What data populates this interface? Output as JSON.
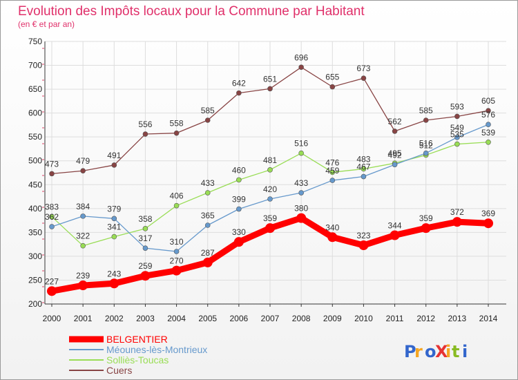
{
  "chart_data": {
    "type": "line",
    "title": "Evolution des Impôts locaux pour la Commune par Habitant",
    "subtitle": "(en € et par an)",
    "x": [
      "2000",
      "2001",
      "2002",
      "2003",
      "2004",
      "2005",
      "2006",
      "2007",
      "2008",
      "2009",
      "2010",
      "2011",
      "2012",
      "2013",
      "2014"
    ],
    "ylim": [
      200,
      750
    ],
    "yticks": [
      200,
      250,
      300,
      350,
      400,
      450,
      500,
      550,
      600,
      650,
      700,
      750
    ],
    "grid": true,
    "legend_placement": "bottom-left",
    "series": [
      {
        "name": "BELGENTIER",
        "color": "#ff0000",
        "values": [
          227,
          239,
          243,
          259,
          270,
          287,
          330,
          359,
          380,
          340,
          323,
          344,
          359,
          372,
          369
        ]
      },
      {
        "name": "Méounes-lès-Montrieux",
        "color": "#6699cc",
        "values": [
          362,
          384,
          379,
          317,
          310,
          365,
          399,
          420,
          433,
          459,
          467,
          492,
          516,
          549,
          576
        ]
      },
      {
        "name": "Solliès-Toucas",
        "color": "#99dd55",
        "values": [
          383,
          322,
          341,
          358,
          406,
          433,
          460,
          481,
          516,
          476,
          483,
          495,
          512,
          535,
          539
        ]
      },
      {
        "name": "Cuers",
        "color": "#884444",
        "values": [
          473,
          479,
          491,
          556,
          558,
          585,
          642,
          651,
          696,
          655,
          673,
          562,
          585,
          593,
          605
        ]
      }
    ]
  },
  "branding": {
    "logo_text": "ProXiti"
  }
}
